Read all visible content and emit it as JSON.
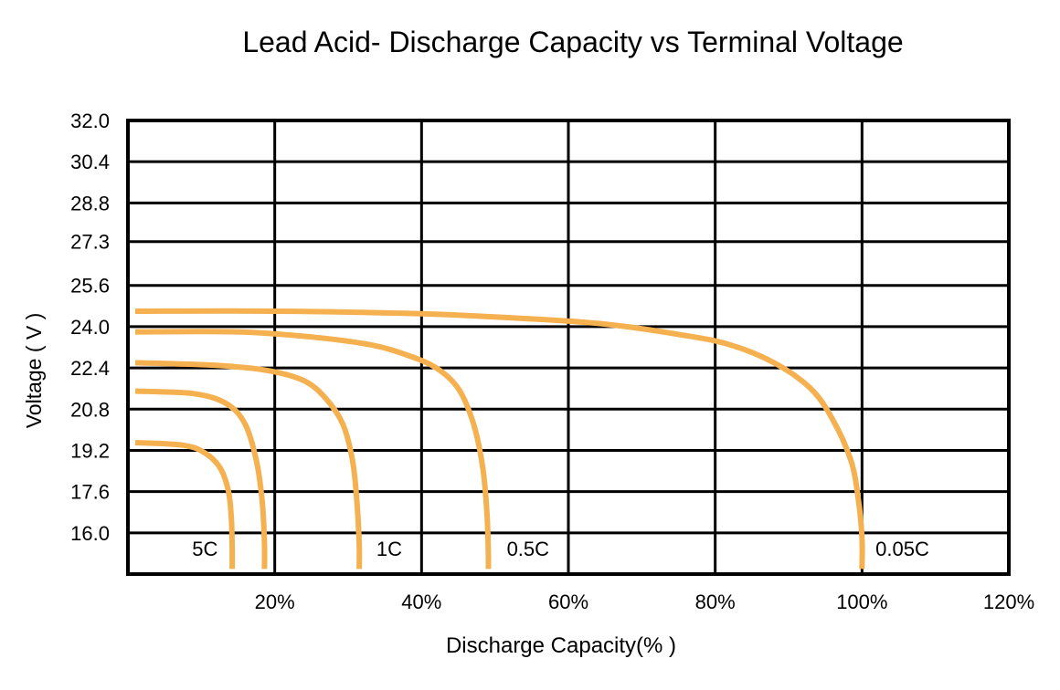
{
  "chart_data": {
    "type": "line",
    "title": "Lead Acid- Discharge Capacity vs Terminal Voltage",
    "xlabel": "Discharge Capacity(% )",
    "ylabel": "Voltage ( V )",
    "xlim": [
      0,
      120
    ],
    "ylim": [
      14.4,
      32.0
    ],
    "x_ticks": [
      20,
      40,
      60,
      80,
      100,
      120
    ],
    "x_tick_labels": [
      "20%",
      "40%",
      "60%",
      "80%",
      "100%",
      "120%"
    ],
    "y_ticks": [
      32.0,
      30.4,
      28.8,
      27.3,
      25.6,
      24.0,
      22.4,
      20.8,
      19.2,
      17.6,
      16.0
    ],
    "y_tick_labels": [
      "32.0",
      "30.4",
      "28.8",
      "27.3",
      "25.6",
      "24.0",
      "22.4",
      "20.8",
      "19.2",
      "17.6",
      "16.0"
    ],
    "grid": true,
    "line_color": "#F5B04F",
    "series": [
      {
        "name": "0.05C",
        "x": [
          1,
          20,
          40,
          55,
          65,
          75,
          82,
          88,
          93,
          96,
          98.5,
          99.5,
          100,
          100
        ],
        "y": [
          24.6,
          24.6,
          24.5,
          24.3,
          24.1,
          23.7,
          23.3,
          22.6,
          21.6,
          20.4,
          18.8,
          17.3,
          15.8,
          14.6
        ]
      },
      {
        "name": "",
        "x": [
          1,
          15,
          25,
          33,
          38,
          42,
          45,
          47,
          48.3,
          48.9,
          49.1,
          49.1
        ],
        "y": [
          23.8,
          23.8,
          23.6,
          23.3,
          22.9,
          22.4,
          21.6,
          20.3,
          18.6,
          16.8,
          15.2,
          14.6
        ]
      },
      {
        "name": "1C",
        "x": [
          1,
          12,
          19,
          24,
          27,
          29.3,
          30.6,
          31.2,
          31.5,
          31.5
        ],
        "y": [
          22.6,
          22.5,
          22.3,
          21.9,
          21.2,
          20.2,
          18.8,
          17.2,
          15.6,
          14.6
        ]
      },
      {
        "name": "",
        "x": [
          1,
          9,
          13.5,
          16,
          17.5,
          18.3,
          18.6,
          18.6
        ],
        "y": [
          21.5,
          21.4,
          21.0,
          20.2,
          18.8,
          17.2,
          15.6,
          14.6
        ]
      },
      {
        "name": "5C",
        "x": [
          1,
          7.5,
          10.5,
          12.6,
          13.7,
          14.1,
          14.2,
          14.2
        ],
        "y": [
          19.5,
          19.4,
          19.1,
          18.5,
          17.6,
          16.5,
          15.4,
          14.6
        ]
      }
    ],
    "curve_labels": [
      {
        "text": "5C",
        "x": 10.5,
        "y": 15.4
      },
      {
        "text": "1C",
        "x": 35.6,
        "y": 15.4
      },
      {
        "text": "0.5C",
        "x": 54.5,
        "y": 15.4
      },
      {
        "text": "0.05C",
        "x": 105.5,
        "y": 15.4
      }
    ]
  }
}
